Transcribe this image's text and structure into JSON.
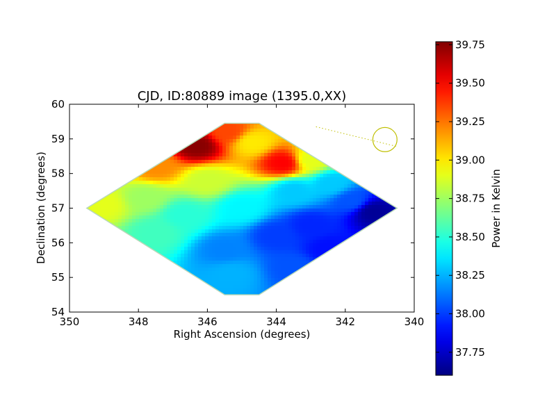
{
  "chart_data": [
    {
      "type": "heatmap",
      "title": "CJD, ID:80889 image (1395.0,XX)",
      "xlabel": "Right Ascension (degrees)",
      "ylabel": "Declination (degrees)",
      "xlim": [
        350,
        340
      ],
      "ylim": [
        54,
        60
      ],
      "x_ticks": [
        "350",
        "348",
        "346",
        "344",
        "342",
        "340"
      ],
      "y_ticks": [
        "54",
        "55",
        "56",
        "57",
        "58",
        "59",
        "60"
      ],
      "colormap": "jet",
      "region_ra_dec": [
        [
          349.5,
          57.0
        ],
        [
          345.5,
          59.45
        ],
        [
          344.5,
          59.45
        ],
        [
          340.5,
          57.0
        ],
        [
          344.5,
          54.5
        ],
        [
          345.5,
          54.5
        ]
      ],
      "value_points": [
        {
          "ra": 346.3,
          "dec": 58.8,
          "value": 39.75
        },
        {
          "ra": 345.4,
          "dec": 59.2,
          "value": 39.35
        },
        {
          "ra": 343.8,
          "dec": 58.3,
          "value": 39.5
        },
        {
          "ra": 347.5,
          "dec": 58.2,
          "value": 39.2
        },
        {
          "ra": 344.7,
          "dec": 58.9,
          "value": 39.0
        },
        {
          "ra": 349.0,
          "dec": 57.1,
          "value": 38.9
        },
        {
          "ra": 347.8,
          "dec": 57.3,
          "value": 38.75
        },
        {
          "ra": 346.0,
          "dec": 57.8,
          "value": 38.85
        },
        {
          "ra": 343.0,
          "dec": 58.4,
          "value": 38.9
        },
        {
          "ra": 346.7,
          "dec": 56.8,
          "value": 38.5
        },
        {
          "ra": 347.5,
          "dec": 56.3,
          "value": 38.55
        },
        {
          "ra": 345.0,
          "dec": 57.0,
          "value": 38.4
        },
        {
          "ra": 343.5,
          "dec": 57.5,
          "value": 38.3
        },
        {
          "ra": 342.4,
          "dec": 57.7,
          "value": 38.3
        },
        {
          "ra": 345.5,
          "dec": 55.8,
          "value": 38.15
        },
        {
          "ra": 345.3,
          "dec": 55.1,
          "value": 38.25
        },
        {
          "ra": 344.0,
          "dec": 56.2,
          "value": 38.0
        },
        {
          "ra": 343.0,
          "dec": 56.5,
          "value": 37.95
        },
        {
          "ra": 341.8,
          "dec": 57.2,
          "value": 38.05
        },
        {
          "ra": 341.2,
          "dec": 56.9,
          "value": 37.65
        },
        {
          "ra": 342.5,
          "dec": 55.8,
          "value": 37.9
        },
        {
          "ra": 343.5,
          "dec": 55.3,
          "value": 38.05
        }
      ],
      "beam": {
        "ra": 340.85,
        "dec": 58.98,
        "radius_deg": 0.35,
        "color": "#bfbf00",
        "line_from": {
          "ra": 342.85,
          "dec": 59.35
        },
        "line_to": {
          "ra": 340.5,
          "dec": 58.78
        }
      }
    },
    {
      "type": "colorbar",
      "label": "Power in Kelvin",
      "range": [
        37.6,
        39.77
      ],
      "ticks": [
        "37.75",
        "38.00",
        "38.25",
        "38.50",
        "38.75",
        "39.00",
        "39.25",
        "39.50",
        "39.75"
      ],
      "tick_values": [
        37.75,
        38.0,
        38.25,
        38.5,
        38.75,
        39.0,
        39.25,
        39.5,
        39.75
      ]
    }
  ]
}
